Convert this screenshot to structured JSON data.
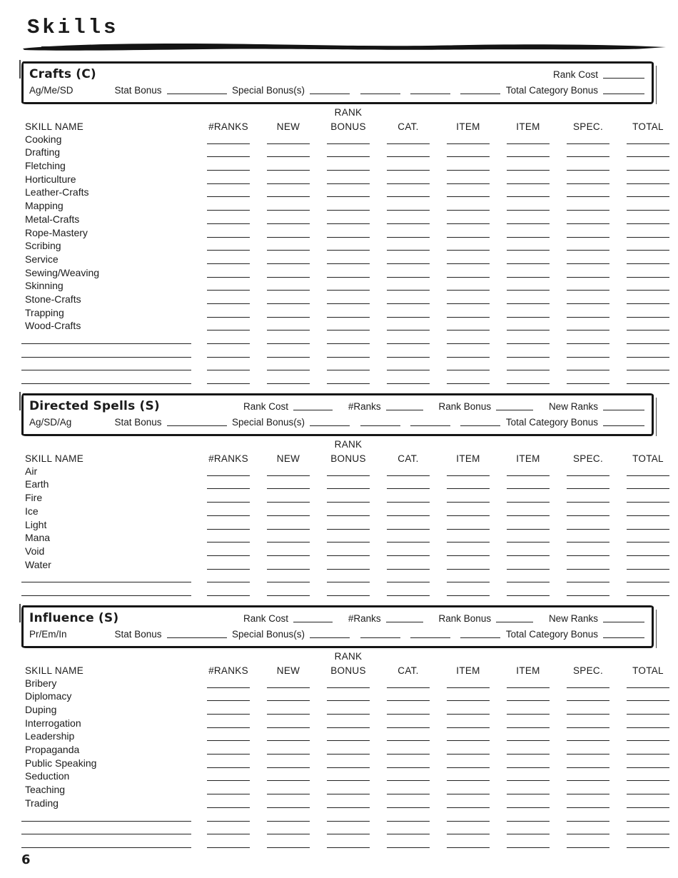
{
  "page": {
    "title": "Skills",
    "page_number": "6"
  },
  "table_columns": {
    "skill_name": "SKILL NAME",
    "ranks": "#RANKS",
    "new": "NEW",
    "rank_word": "RANK",
    "bonus_word": "BONUS",
    "cat": "CAT.",
    "item_a": "ITEM",
    "item_b": "ITEM",
    "spec": "SPEC.",
    "total": "TOTAL"
  },
  "labels": {
    "rank_cost": "Rank Cost",
    "num_ranks": "#Ranks",
    "rank_bonus": "Rank Bonus",
    "new_ranks": "New Ranks",
    "stat_bonus": "Stat Bonus",
    "special_bonus": "Special Bonus(s)",
    "total_category_bonus": "Total Category Bonus"
  },
  "sections": [
    {
      "name": "Crafts (C)",
      "stats": "Ag/Me/SD",
      "header_has_rank_row": false,
      "skills": [
        "Cooking",
        "Drafting",
        "Fletching",
        "Horticulture",
        "Leather-Crafts",
        "Mapping",
        "Metal-Crafts",
        "Rope-Mastery",
        "Scribing",
        "Service",
        "Sewing/Weaving",
        "Skinning",
        "Stone-Crafts",
        "Trapping",
        "Wood-Crafts"
      ],
      "blank_rows": 4
    },
    {
      "name": "Directed Spells (S)",
      "stats": "Ag/SD/Ag",
      "header_has_rank_row": true,
      "skills": [
        "Air",
        "Earth",
        "Fire",
        "Ice",
        "Light",
        "Mana",
        "Void",
        "Water"
      ],
      "blank_rows": 2
    },
    {
      "name": "Influence (S)",
      "stats": "Pr/Em/In",
      "header_has_rank_row": true,
      "skills": [
        "Bribery",
        "Diplomacy",
        "Duping",
        "Interrogation",
        "Leadership",
        "Propaganda",
        "Public Speaking",
        "Seduction",
        "Teaching",
        "Trading"
      ],
      "blank_rows": 3
    }
  ]
}
